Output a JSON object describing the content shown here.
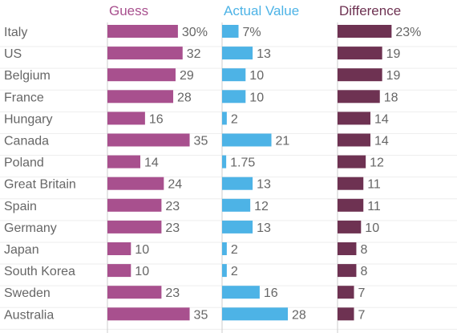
{
  "chart_data": {
    "type": "bar",
    "orientation": "horizontal",
    "categories": [
      "Italy",
      "US",
      "Belgium",
      "France",
      "Hungary",
      "Canada",
      "Poland",
      "Great Britain",
      "Spain",
      "Germany",
      "Japan",
      "South Korea",
      "Sweden",
      "Australia"
    ],
    "series": [
      {
        "name": "Guess",
        "color": "#a8508e",
        "values": [
          30,
          32,
          29,
          28,
          16,
          35,
          14,
          24,
          23,
          23,
          10,
          10,
          23,
          35
        ],
        "labels": [
          "30%",
          "32",
          "29",
          "28",
          "16",
          "35",
          "14",
          "24",
          "23",
          "23",
          "10",
          "10",
          "23",
          "35"
        ]
      },
      {
        "name": "Actual Value",
        "color": "#4db3e6",
        "values": [
          7,
          13,
          10,
          10,
          2,
          21,
          1.75,
          13,
          12,
          13,
          2,
          2,
          16,
          28
        ],
        "labels": [
          "7%",
          "13",
          "10",
          "10",
          "2",
          "21",
          "1.75",
          "13",
          "12",
          "13",
          "2",
          "2",
          "16",
          "28"
        ]
      },
      {
        "name": "Difference",
        "color": "#6e3252",
        "values": [
          23,
          19,
          19,
          18,
          14,
          14,
          12,
          11,
          11,
          10,
          8,
          8,
          7,
          7
        ],
        "labels": [
          "23%",
          "19",
          "19",
          "18",
          "14",
          "14",
          "12",
          "11",
          "11",
          "10",
          "8",
          "8",
          "7",
          "7"
        ]
      }
    ],
    "title": "",
    "xlabel": "",
    "ylabel": "",
    "grid": true,
    "legend": "none"
  }
}
